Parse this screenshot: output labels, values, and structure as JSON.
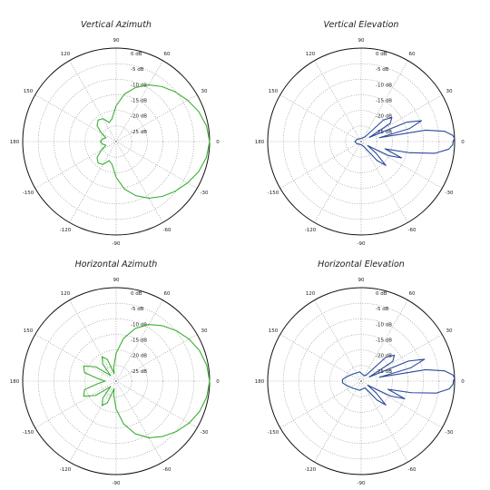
{
  "ring_labels": [
    "0 dB",
    "-5 dB",
    "-10 dB",
    "-15 dB",
    "-20 dB",
    "-25 dB"
  ],
  "angle_labels": [
    "0",
    "30",
    "60",
    "90",
    "120",
    "150",
    "180",
    "-150",
    "-120",
    "-90",
    "-60",
    "-30"
  ],
  "colors": {
    "green": "#3cb034",
    "blue": "#2a4a9c",
    "frame": "#111111",
    "grid": "#888888"
  },
  "chart_data": [
    {
      "type": "polar",
      "title": "Vertical Azimuth",
      "color": "green",
      "r_range_db": [
        -30,
        0
      ],
      "grid": true,
      "pattern": [
        {
          "angle": 0,
          "db": 0
        },
        {
          "angle": 10,
          "db": -0.6
        },
        {
          "angle": 20,
          "db": -1.8
        },
        {
          "angle": 30,
          "db": -3.5
        },
        {
          "angle": 40,
          "db": -5.2
        },
        {
          "angle": 50,
          "db": -7.0
        },
        {
          "angle": 60,
          "db": -9.0
        },
        {
          "angle": 70,
          "db": -11.5
        },
        {
          "angle": 80,
          "db": -14.5
        },
        {
          "angle": 90,
          "db": -18.5
        },
        {
          "angle": 100,
          "db": -22.5
        },
        {
          "angle": 110,
          "db": -23.5
        },
        {
          "angle": 120,
          "db": -21.5
        },
        {
          "angle": 130,
          "db": -21.0
        },
        {
          "angle": 140,
          "db": -22.0
        },
        {
          "angle": 150,
          "db": -24.5
        },
        {
          "angle": 160,
          "db": -26.5
        },
        {
          "angle": 170,
          "db": -25.5
        },
        {
          "angle": 180,
          "db": -25.0
        },
        {
          "angle": 190,
          "db": -25.5
        },
        {
          "angle": 200,
          "db": -26.5
        },
        {
          "angle": 210,
          "db": -24.5
        },
        {
          "angle": 220,
          "db": -22.0
        },
        {
          "angle": 230,
          "db": -21.0
        },
        {
          "angle": 240,
          "db": -21.5
        },
        {
          "angle": 250,
          "db": -23.5
        },
        {
          "angle": 260,
          "db": -22.5
        },
        {
          "angle": 270,
          "db": -18.5
        },
        {
          "angle": 280,
          "db": -14.5
        },
        {
          "angle": 290,
          "db": -11.5
        },
        {
          "angle": 300,
          "db": -9.0
        },
        {
          "angle": 310,
          "db": -7.0
        },
        {
          "angle": 320,
          "db": -5.2
        },
        {
          "angle": 330,
          "db": -3.5
        },
        {
          "angle": 340,
          "db": -1.8
        },
        {
          "angle": 350,
          "db": -0.6
        }
      ]
    },
    {
      "type": "polar",
      "title": "Vertical Elevation",
      "color": "blue",
      "r_range_db": [
        -30,
        0
      ],
      "grid": true,
      "pattern": [
        {
          "angle": 0,
          "db": -0.5
        },
        {
          "angle": 2,
          "db": 0
        },
        {
          "angle": 4,
          "db": -0.6
        },
        {
          "angle": 7,
          "db": -3
        },
        {
          "angle": 10,
          "db": -9
        },
        {
          "angle": 12,
          "db": -24
        },
        {
          "angle": 15,
          "db": -14
        },
        {
          "angle": 19,
          "db": -9.5
        },
        {
          "angle": 23,
          "db": -14
        },
        {
          "angle": 27,
          "db": -27
        },
        {
          "angle": 32,
          "db": -19
        },
        {
          "angle": 38,
          "db": -17.5
        },
        {
          "angle": 44,
          "db": -20
        },
        {
          "angle": 50,
          "db": -28
        },
        {
          "angle": 60,
          "db": -28.5
        },
        {
          "angle": 90,
          "db": -29
        },
        {
          "angle": 150,
          "db": -28.5
        },
        {
          "angle": 180,
          "db": -28
        },
        {
          "angle": 210,
          "db": -28.5
        },
        {
          "angle": 270,
          "db": -29
        },
        {
          "angle": 300,
          "db": -28
        },
        {
          "angle": 310,
          "db": -22
        },
        {
          "angle": 316,
          "db": -19
        },
        {
          "angle": 322,
          "db": -24
        },
        {
          "angle": 328,
          "db": -27.5
        },
        {
          "angle": 333,
          "db": -20
        },
        {
          "angle": 338,
          "db": -16
        },
        {
          "angle": 343,
          "db": -22
        },
        {
          "angle": 347,
          "db": -14
        },
        {
          "angle": 351,
          "db": -6
        },
        {
          "angle": 355,
          "db": -1.8
        },
        {
          "angle": 358,
          "db": -0.6
        }
      ]
    },
    {
      "type": "polar",
      "title": "Horizontal Azimuth",
      "color": "green",
      "r_range_db": [
        -30,
        0
      ],
      "grid": true,
      "pattern": [
        {
          "angle": 0,
          "db": 0
        },
        {
          "angle": 10,
          "db": -0.5
        },
        {
          "angle": 20,
          "db": -1.5
        },
        {
          "angle": 30,
          "db": -3.0
        },
        {
          "angle": 40,
          "db": -4.8
        },
        {
          "angle": 50,
          "db": -6.8
        },
        {
          "angle": 60,
          "db": -9.0
        },
        {
          "angle": 70,
          "db": -12.0
        },
        {
          "angle": 80,
          "db": -16.0
        },
        {
          "angle": 90,
          "db": -21.0
        },
        {
          "angle": 100,
          "db": -25.5
        },
        {
          "angle": 105,
          "db": -27.5
        },
        {
          "angle": 112,
          "db": -22.5
        },
        {
          "angle": 120,
          "db": -21.0
        },
        {
          "angle": 128,
          "db": -23.0
        },
        {
          "angle": 135,
          "db": -27.5
        },
        {
          "angle": 145,
          "db": -22.0
        },
        {
          "angle": 155,
          "db": -18.5
        },
        {
          "angle": 165,
          "db": -19.5
        },
        {
          "angle": 172,
          "db": -24.0
        },
        {
          "angle": 180,
          "db": -26.5
        },
        {
          "angle": 188,
          "db": -24.0
        },
        {
          "angle": 195,
          "db": -19.5
        },
        {
          "angle": 205,
          "db": -18.5
        },
        {
          "angle": 215,
          "db": -22.0
        },
        {
          "angle": 225,
          "db": -27.5
        },
        {
          "angle": 232,
          "db": -23.0
        },
        {
          "angle": 240,
          "db": -21.0
        },
        {
          "angle": 248,
          "db": -22.5
        },
        {
          "angle": 255,
          "db": -27.5
        },
        {
          "angle": 260,
          "db": -25.5
        },
        {
          "angle": 270,
          "db": -21.0
        },
        {
          "angle": 280,
          "db": -16.0
        },
        {
          "angle": 290,
          "db": -12.0
        },
        {
          "angle": 300,
          "db": -9.0
        },
        {
          "angle": 310,
          "db": -6.8
        },
        {
          "angle": 320,
          "db": -4.8
        },
        {
          "angle": 330,
          "db": -3.0
        },
        {
          "angle": 340,
          "db": -1.5
        },
        {
          "angle": 350,
          "db": -0.5
        }
      ]
    },
    {
      "type": "polar",
      "title": "Horizontal Elevation",
      "color": "blue",
      "r_range_db": [
        -30,
        0
      ],
      "grid": true,
      "pattern": [
        {
          "angle": 0,
          "db": -0.4
        },
        {
          "angle": 2,
          "db": 0
        },
        {
          "angle": 4,
          "db": -0.6
        },
        {
          "angle": 7,
          "db": -3
        },
        {
          "angle": 10,
          "db": -9
        },
        {
          "angle": 12,
          "db": -24
        },
        {
          "angle": 15,
          "db": -13.5
        },
        {
          "angle": 19,
          "db": -8.5
        },
        {
          "angle": 23,
          "db": -13.5
        },
        {
          "angle": 27,
          "db": -27
        },
        {
          "angle": 32,
          "db": -18
        },
        {
          "angle": 38,
          "db": -16.5
        },
        {
          "angle": 44,
          "db": -19
        },
        {
          "angle": 50,
          "db": -27.5
        },
        {
          "angle": 60,
          "db": -28
        },
        {
          "angle": 100,
          "db": -27
        },
        {
          "angle": 140,
          "db": -26.5
        },
        {
          "angle": 165,
          "db": -25
        },
        {
          "angle": 175,
          "db": -24
        },
        {
          "angle": 180,
          "db": -24
        },
        {
          "angle": 185,
          "db": -24
        },
        {
          "angle": 195,
          "db": -25
        },
        {
          "angle": 220,
          "db": -26.5
        },
        {
          "angle": 260,
          "db": -27
        },
        {
          "angle": 300,
          "db": -27.5
        },
        {
          "angle": 310,
          "db": -22
        },
        {
          "angle": 316,
          "db": -19
        },
        {
          "angle": 322,
          "db": -24
        },
        {
          "angle": 328,
          "db": -27.5
        },
        {
          "angle": 333,
          "db": -19.5
        },
        {
          "angle": 338,
          "db": -15
        },
        {
          "angle": 343,
          "db": -21
        },
        {
          "angle": 347,
          "db": -13.5
        },
        {
          "angle": 351,
          "db": -5.5
        },
        {
          "angle": 355,
          "db": -1.6
        },
        {
          "angle": 358,
          "db": -0.5
        }
      ]
    }
  ]
}
